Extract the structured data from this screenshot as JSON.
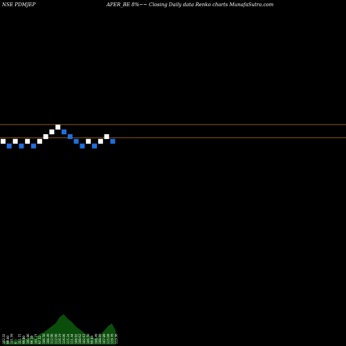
{
  "header": {
    "exchange_symbol": "NSE PDMJEP",
    "caption": "APER_BE 8%~~  Closing Daily data  Renko  charts MunafaSutra.com"
  },
  "colors": {
    "background": "#000000",
    "up_brick": "#ffffff",
    "down_brick": "#1e6fe0",
    "level_line": "#c87a14",
    "volume_fill": "#0b4d0b"
  },
  "chart_data": {
    "type": "renko",
    "title": "APER_BE 8%~~  Closing Daily data  Renko  charts MunafaSutra.com",
    "directions": [
      "up",
      "down",
      "up",
      "down",
      "up",
      "down",
      "up",
      "up",
      "up",
      "up",
      "down",
      "down",
      "down",
      "down",
      "up",
      "down",
      "up",
      "up",
      "down"
    ],
    "levels": [
      1,
      0,
      1,
      0,
      1,
      0,
      1,
      2,
      3,
      4,
      3,
      2,
      1,
      0,
      1,
      0,
      1,
      2,
      1
    ],
    "horizontal_levels": [
      "upper",
      "lower"
    ],
    "volume_labels": [
      "102.32",
      "99.00",
      "101.59",
      "9",
      "101.75",
      "99.00",
      "100.86",
      "96.10",
      "101.27",
      "97.52",
      "106.50",
      "108.49",
      "112.00",
      "112.00",
      "116.19",
      "116.06",
      "115.24",
      "111.44",
      "108.92",
      "108.62",
      "102.67",
      "106.50",
      "99.04",
      "108.49",
      "108.49",
      "107.89",
      "115.09",
      "119.78",
      "113.36"
    ],
    "volume_values": [
      2,
      3,
      1,
      4,
      2,
      5,
      3,
      6,
      4,
      7,
      8,
      10,
      12,
      14,
      18,
      20,
      17,
      15,
      12,
      10,
      8,
      6,
      5,
      4,
      6,
      9,
      12,
      14,
      9
    ],
    "grid": false,
    "legend": "none"
  }
}
